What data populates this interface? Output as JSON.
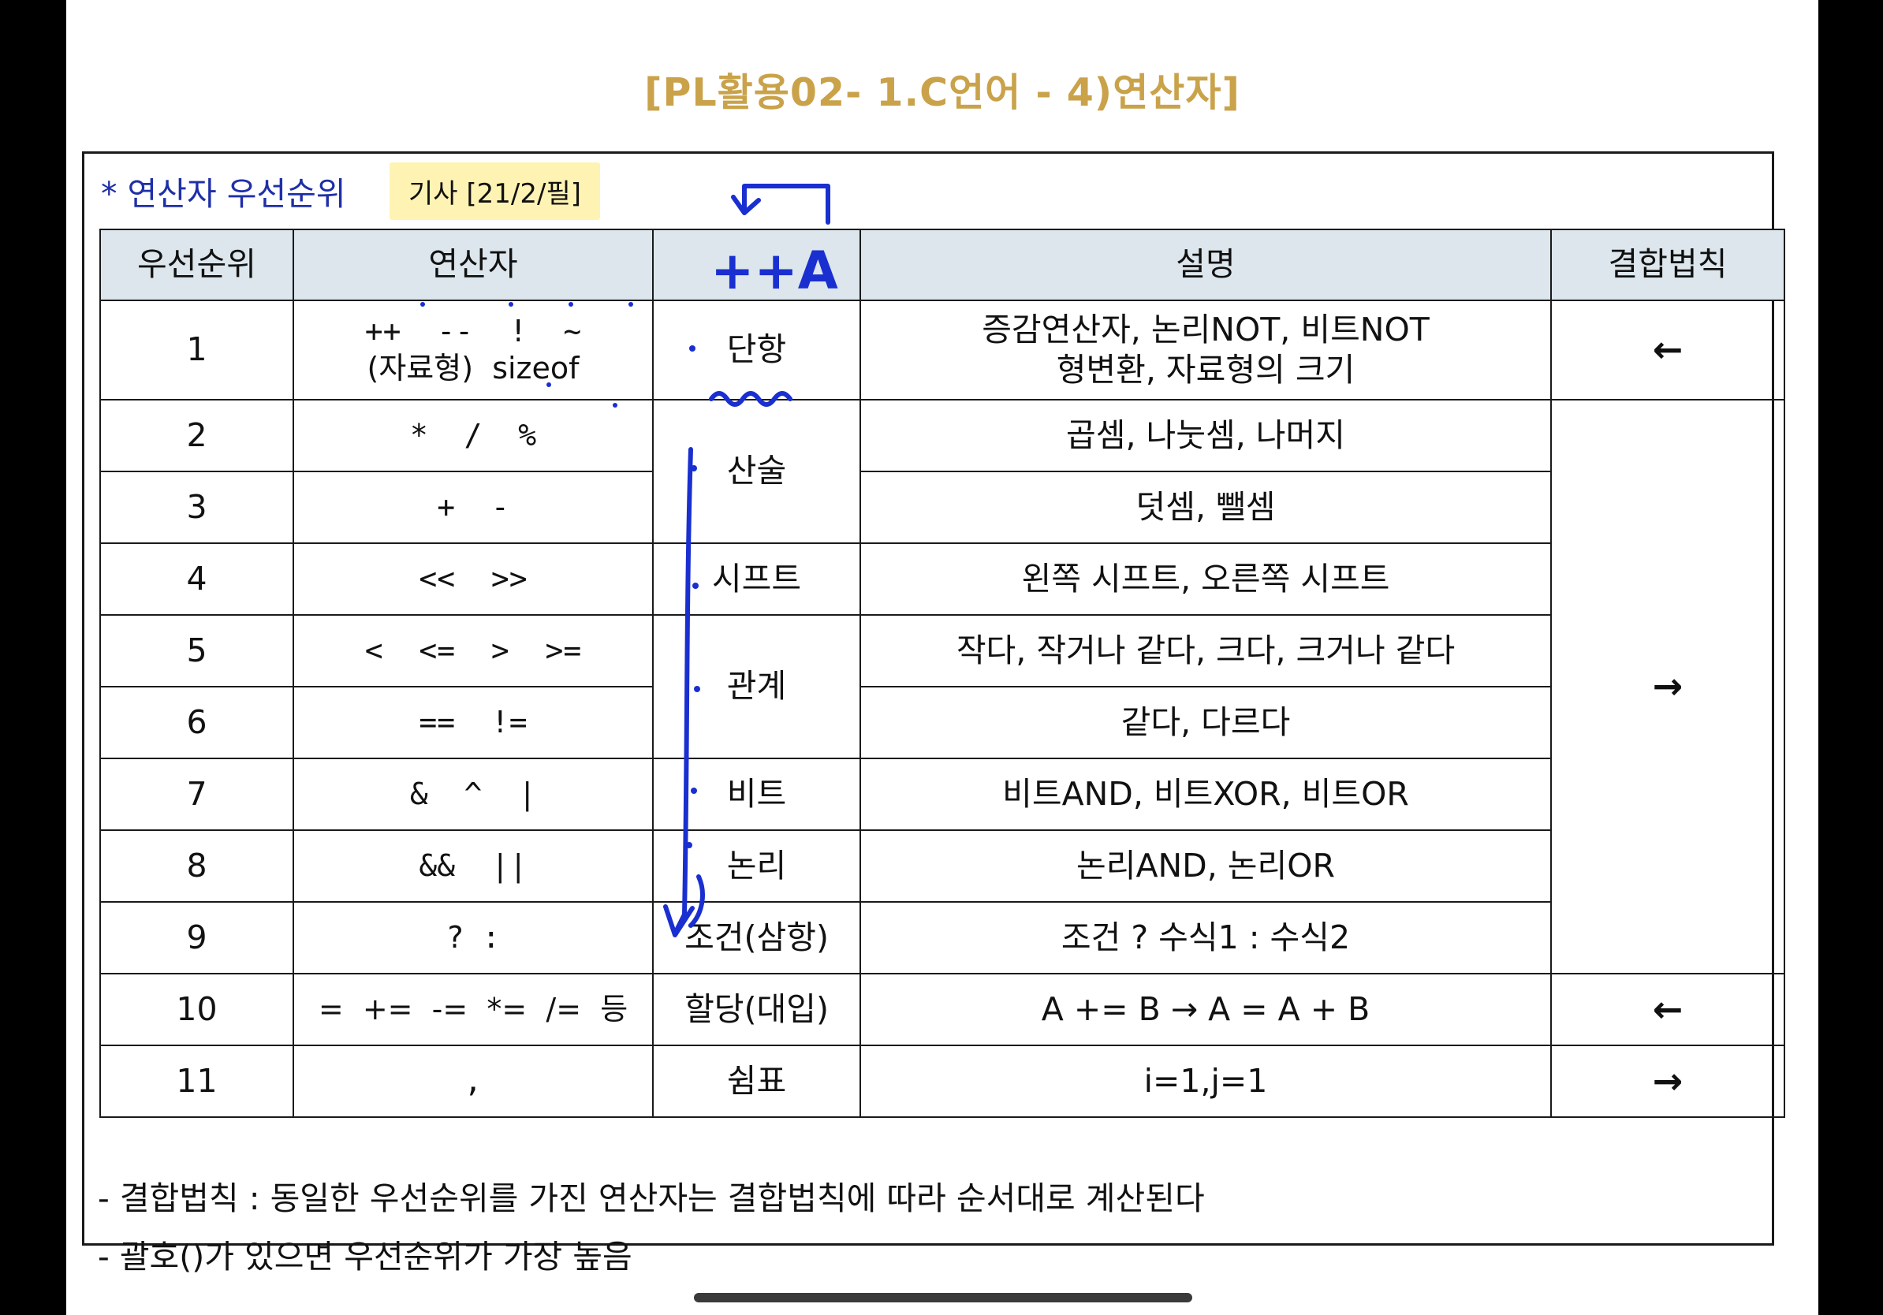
{
  "page": {
    "title": "[PL활용02- 1.C언어 - 4)연산자]",
    "subtitle": "* 연산자 우선순위",
    "tag": "기사 [21/2/필]"
  },
  "table": {
    "headers": [
      "우선순위",
      "연산자",
      "",
      "설명",
      "결합법칙"
    ],
    "rows": [
      {
        "rank": "1",
        "ops": "++  --  !  ~",
        "ops2": "(자료형)  sizeof",
        "category": "단항",
        "desc": "증감연산자, 논리NOT, 비트NOT",
        "desc2": "형변환, 자료형의 크기",
        "assoc": "←"
      },
      {
        "rank": "2",
        "ops": "*  /  %",
        "category": "산술",
        "desc": "곱셈, 나눗셈, 나머지",
        "assoc": "→"
      },
      {
        "rank": "3",
        "ops": "+  -",
        "desc": "덧셈, 뺄셈"
      },
      {
        "rank": "4",
        "ops": "<<  >>",
        "category": "시프트",
        "desc": "왼쪽 시프트, 오른쪽 시프트"
      },
      {
        "rank": "5",
        "ops": "<  <=  >  >=",
        "category": "관계",
        "desc": "작다, 작거나 같다, 크다, 크거나 같다"
      },
      {
        "rank": "6",
        "ops": "==  !=",
        "desc": "같다, 다르다"
      },
      {
        "rank": "7",
        "ops": "&  ^  |",
        "category": "비트",
        "desc": "비트AND, 비트XOR, 비트OR"
      },
      {
        "rank": "8",
        "ops": "&&  ||",
        "category": "논리",
        "desc": "논리AND, 논리OR"
      },
      {
        "rank": "9",
        "ops": "? :",
        "category": "조건(삼항)",
        "desc": "조건 ? 수식1 : 수식2"
      },
      {
        "rank": "10",
        "ops": "=  +=  -=  *=  /=  등",
        "category": "할당(대입)",
        "desc": "A += B → A = A + B",
        "assoc": "←"
      },
      {
        "rank": "11",
        "ops": ",",
        "category": "쉼표",
        "desc": "i=1,j=1",
        "assoc": "→"
      }
    ]
  },
  "annotation": {
    "header_text": "++A",
    "color": "#1a2fd0"
  },
  "notes": [
    "- 결합법칙 : 동일한 우선순위를 가진 연산자는 결합법칙에 따라 순서대로 계산된다",
    "- 괄호()가 있으면 우선순위가 가장 높음"
  ],
  "colors": {
    "title": "#c9a24a",
    "subtitle": "#1f2fa8",
    "tag_bg": "#fff3b3",
    "header_bg": "#dce6ec"
  }
}
